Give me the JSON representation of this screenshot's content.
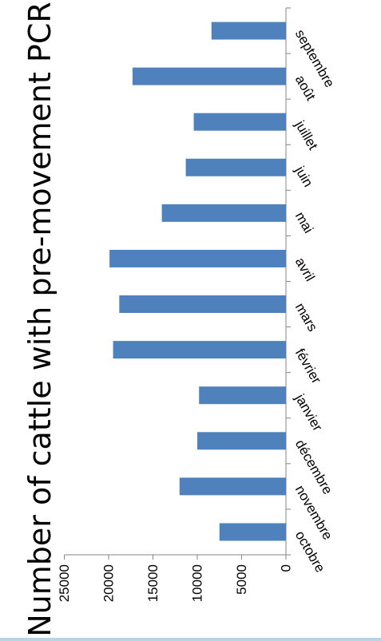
{
  "chart_data": {
    "type": "bar",
    "orientation": "horizontal",
    "title": "Number of cattle with pre-movement PCR",
    "categories": [
      "octobre",
      "novembre",
      "décembre",
      "janvier",
      "février",
      "mars",
      "avril",
      "mai",
      "juin",
      "juillet",
      "août",
      "septembre"
    ],
    "values": [
      7500,
      12000,
      10000,
      9800,
      19500,
      18800,
      19900,
      14000,
      11300,
      10400,
      17300,
      8400
    ],
    "value_axis": {
      "min": 0,
      "max": 25000,
      "ticks": [
        "0",
        "5000",
        "10000",
        "15000",
        "20000",
        "25000"
      ]
    },
    "grid": false,
    "legend": "none",
    "colors": {
      "bar": "#4f81bd",
      "axis": "#868686"
    }
  }
}
